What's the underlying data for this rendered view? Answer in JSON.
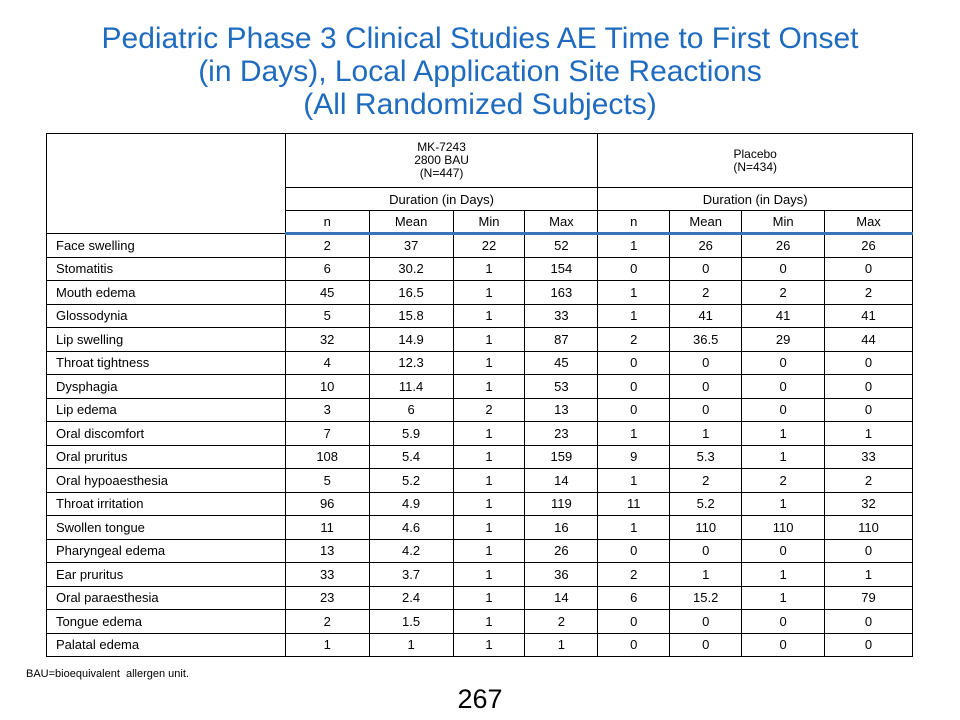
{
  "title": {
    "line1": "Pediatric Phase 3 Clinical Studies AE Time to First Onset",
    "line2": "(in Days), Local Application Site Reactions",
    "line3": "(All Randomized Subjects)"
  },
  "table": {
    "group1": {
      "line1": "MK-7243",
      "line2": "2800 BAU",
      "line3": "(N=447)"
    },
    "group2": {
      "line1": "Placebo",
      "line2": "(N=434)"
    },
    "duration_label": "Duration (in Days)",
    "columns": [
      "n",
      "Mean",
      "Min",
      "Max",
      "n",
      "Mean",
      "Min",
      "Max"
    ],
    "rows": [
      [
        "Face swelling",
        "2",
        "37",
        "22",
        "52",
        "1",
        "26",
        "26",
        "26"
      ],
      [
        "Stomatitis",
        "6",
        "30.2",
        "1",
        "154",
        "0",
        "0",
        "0",
        "0"
      ],
      [
        "Mouth edema",
        "45",
        "16.5",
        "1",
        "163",
        "1",
        "2",
        "2",
        "2"
      ],
      [
        "Glossodynia",
        "5",
        "15.8",
        "1",
        "33",
        "1",
        "41",
        "41",
        "41"
      ],
      [
        "Lip swelling",
        "32",
        "14.9",
        "1",
        "87",
        "2",
        "36.5",
        "29",
        "44"
      ],
      [
        "Throat tightness",
        "4",
        "12.3",
        "1",
        "45",
        "0",
        "0",
        "0",
        "0"
      ],
      [
        "Dysphagia",
        "10",
        "11.4",
        "1",
        "53",
        "0",
        "0",
        "0",
        "0"
      ],
      [
        "Lip edema",
        "3",
        "6",
        "2",
        "13",
        "0",
        "0",
        "0",
        "0"
      ],
      [
        "Oral discomfort",
        "7",
        "5.9",
        "1",
        "23",
        "1",
        "1",
        "1",
        "1"
      ],
      [
        "Oral pruritus",
        "108",
        "5.4",
        "1",
        "159",
        "9",
        "5.3",
        "1",
        "33"
      ],
      [
        "Oral hypoaesthesia",
        "5",
        "5.2",
        "1",
        "14",
        "1",
        "2",
        "2",
        "2"
      ],
      [
        "Throat irritation",
        "96",
        "4.9",
        "1",
        "119",
        "11",
        "5.2",
        "1",
        "32"
      ],
      [
        "Swollen tongue",
        "11",
        "4.6",
        "1",
        "16",
        "1",
        "110",
        "110",
        "110"
      ],
      [
        "Pharyngeal edema",
        "13",
        "4.2",
        "1",
        "26",
        "0",
        "0",
        "0",
        "0"
      ],
      [
        "Ear pruritus",
        "33",
        "3.7",
        "1",
        "36",
        "2",
        "1",
        "1",
        "1"
      ],
      [
        "Oral paraesthesia",
        "23",
        "2.4",
        "1",
        "14",
        "6",
        "15.2",
        "1",
        "79"
      ],
      [
        "Tongue edema",
        "2",
        "1.5",
        "1",
        "2",
        "0",
        "0",
        "0",
        "0"
      ],
      [
        "Palatal edema",
        "1",
        "1",
        "1",
        "1",
        "0",
        "0",
        "0",
        "0"
      ]
    ]
  },
  "footnote": "BAU=bioequivalent  allergen unit.",
  "page_number": "267",
  "colors": {
    "title": "#1f6bbf",
    "header_rule": "#3b73b9"
  }
}
